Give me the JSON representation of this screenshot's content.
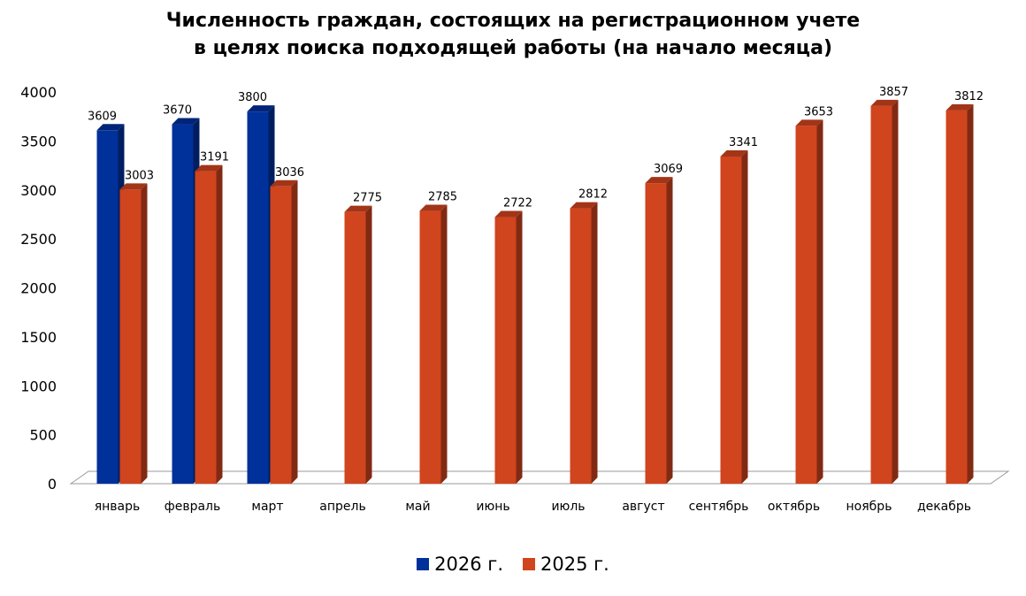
{
  "chart_data": {
    "type": "bar",
    "title_lines": [
      "Численность граждан, состоящих на регистрационном учете",
      "в целях поиска подходящей работы (на начало месяца)"
    ],
    "categories": [
      "январь",
      "февраль",
      "март",
      "апрель",
      "май",
      "июнь",
      "июль",
      "август",
      "сентябрь",
      "октябрь",
      "ноябрь",
      "декабрь"
    ],
    "series": [
      {
        "name": "2026 г.",
        "color": "#00309A",
        "values": [
          3609,
          3670,
          3800,
          null,
          null,
          null,
          null,
          null,
          null,
          null,
          null,
          null
        ]
      },
      {
        "name": "2025 г.",
        "color": "#D0441E",
        "values": [
          3003,
          3191,
          3036,
          2775,
          2785,
          2722,
          2812,
          3069,
          3341,
          3653,
          3857,
          3812
        ]
      }
    ],
    "ylim": [
      0,
      4000
    ],
    "yticks": [
      "0",
      "500",
      "1000",
      "1500",
      "2000",
      "2500",
      "3000",
      "3500",
      "4000"
    ],
    "grid": false,
    "legend_position": "bottom",
    "style": "3d-column"
  }
}
